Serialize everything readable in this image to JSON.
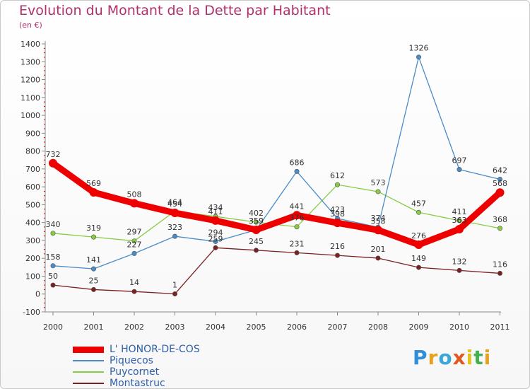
{
  "header": {
    "title": "Evolution du Montant de la Dette par Habitant",
    "subtitle": "(en €)"
  },
  "brand": {
    "text": "Proxiti",
    "letter_colors": [
      "#2f8fd8",
      "#e6a21e",
      "#3aa7d8",
      "#e05a20",
      "#e6c21e",
      "#45b050",
      "#e6a21e"
    ]
  },
  "chart_data": {
    "type": "line",
    "x": [
      "2000",
      "2001",
      "2002",
      "2003",
      "2004",
      "2005",
      "2006",
      "2007",
      "2008",
      "2009",
      "2010",
      "2011"
    ],
    "ylim": [
      -100,
      1400
    ],
    "yticks": [
      "-100",
      "0",
      "100",
      "200",
      "300",
      "400",
      "500",
      "600",
      "700",
      "800",
      "900",
      "1000",
      "1100",
      "1200",
      "1300",
      "1400"
    ],
    "grid": false,
    "legend_position": "bottom-left",
    "series": [
      {
        "name": "L' HONOR-DE-COS",
        "color": "#ee0000",
        "values": [
          732,
          569,
          508,
          454,
          411,
          359,
          441,
          398,
          358,
          276,
          363,
          568
        ]
      },
      {
        "name": "Piquecos",
        "color": "#4a8cc8",
        "values": [
          158,
          141,
          227,
          323,
          294,
          359,
          686,
          423,
          374,
          1326,
          697,
          642
        ]
      },
      {
        "name": "Puycornet",
        "color": "#88cc44",
        "values": [
          340,
          319,
          297,
          464,
          434,
          402,
          376,
          612,
          573,
          457,
          411,
          368
        ]
      },
      {
        "name": "Montastruc",
        "color": "#7a2020",
        "values": [
          50,
          25,
          14,
          1,
          259,
          245,
          231,
          216,
          201,
          149,
          132,
          116
        ]
      }
    ]
  }
}
